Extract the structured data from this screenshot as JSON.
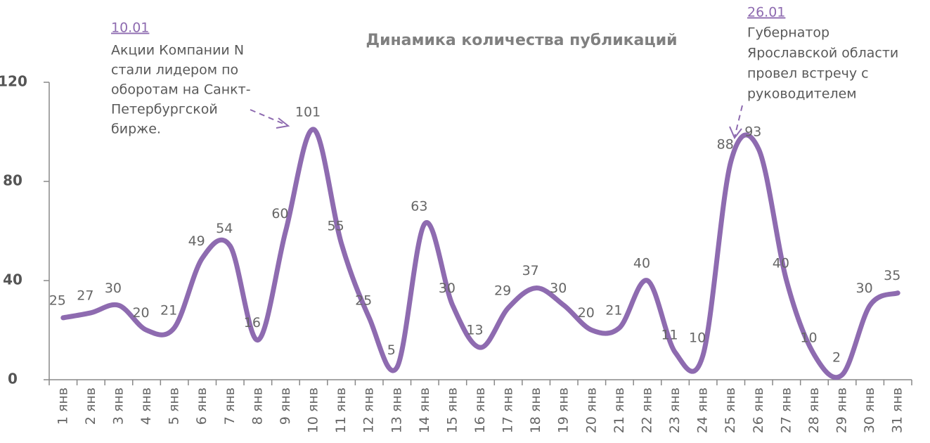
{
  "chart_data": {
    "type": "line",
    "title": "Динамика количества  публикаций",
    "categories": [
      "1 янв",
      "2 янв",
      "3 янв",
      "4 янв",
      "5 янв",
      "6 янв",
      "7 янв",
      "8 янв",
      "9 янв",
      "10 янв",
      "11 янв",
      "12 янв",
      "13 янв",
      "14 янв",
      "15 янв",
      "16 янв",
      "17 янв",
      "18 янв",
      "19 янв",
      "20 янв",
      "21 янв",
      "22 янв",
      "23 янв",
      "24 янв",
      "25 янв",
      "26 янв",
      "27 янв",
      "28 янв",
      "29 янв",
      "30 янв",
      "31 янв"
    ],
    "values": [
      25,
      27,
      30,
      20,
      21,
      49,
      54,
      16,
      60,
      101,
      55,
      25,
      5,
      63,
      30,
      13,
      29,
      37,
      30,
      20,
      21,
      40,
      11,
      10,
      88,
      93,
      40,
      10,
      2,
      30,
      35
    ],
    "color": "#8e6bb0",
    "ylim": [
      0,
      120
    ],
    "yticks": [
      0,
      40,
      80,
      120
    ],
    "annotations": [
      {
        "date": "10.01",
        "lines": [
          "Акции Компании N",
          "стали лидером по",
          "оборотам на Санкт-",
          "Петербургской",
          "бирже."
        ]
      },
      {
        "date": "26.01",
        "lines": [
          "Губернатор",
          "Ярославской области",
          "провел встречу с",
          "руководителем"
        ]
      }
    ]
  }
}
